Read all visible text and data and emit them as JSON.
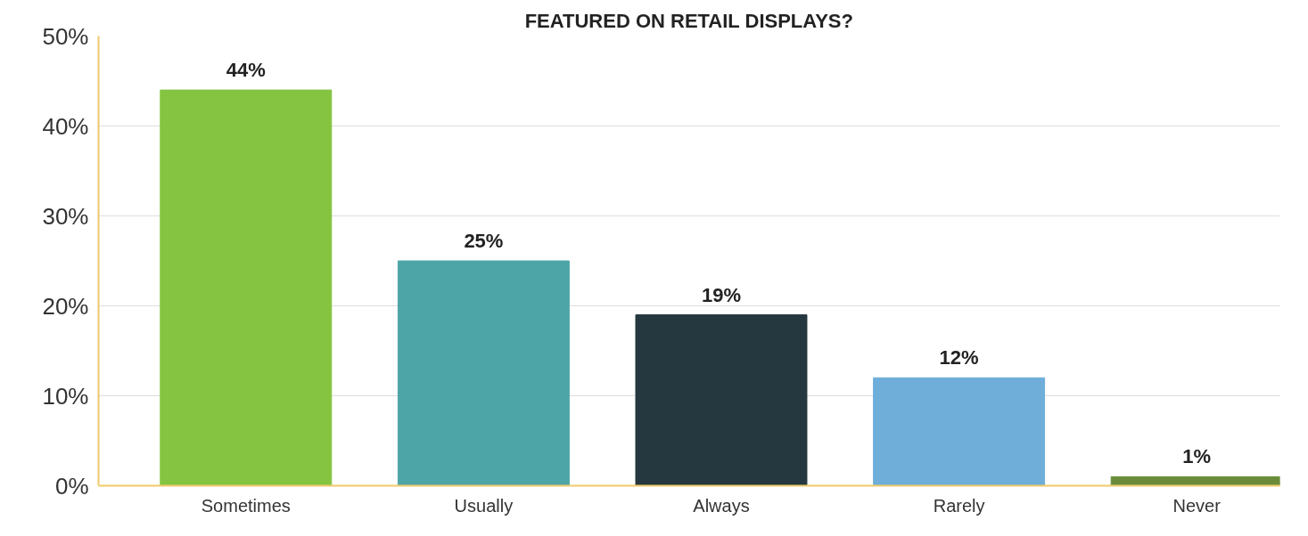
{
  "chart_data": {
    "type": "bar",
    "title": "FEATURED ON RETAIL DISPLAYS?",
    "categories": [
      "Sometimes",
      "Usually",
      "Always",
      "Rarely",
      "Never"
    ],
    "values": [
      44,
      25,
      19,
      12,
      1
    ],
    "colors": [
      "#84c441",
      "#4ea5a7",
      "#25373f",
      "#6eaed9",
      "#6a8c3a"
    ],
    "ylim": [
      0,
      50
    ],
    "yticks": [
      {
        "value": 0,
        "label": "0%"
      },
      {
        "value": 10,
        "label": "10%"
      },
      {
        "value": 20,
        "label": "20%"
      },
      {
        "value": 30,
        "label": "30%"
      },
      {
        "value": 40,
        "label": "40%"
      },
      {
        "value": 50,
        "label": "50%"
      }
    ],
    "value_labels": [
      "44%",
      "25%",
      "19%",
      "12%",
      "1%"
    ],
    "grid": "y"
  }
}
